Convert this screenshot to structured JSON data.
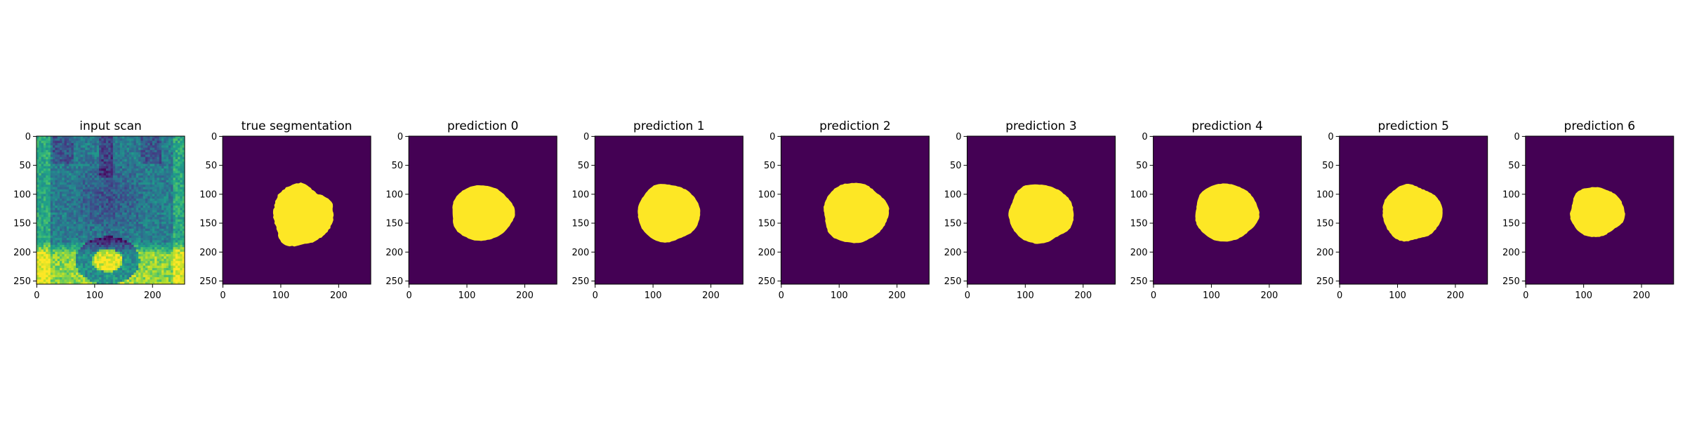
{
  "chart_data": {
    "type": "heatmap",
    "panels": [
      {
        "title": "input scan",
        "kind": "scan"
      },
      {
        "title": "true segmentation",
        "kind": "mask",
        "mask": {
          "cx": 137,
          "cy": 137,
          "rx": 52,
          "ry": 53,
          "jag": 0.12,
          "seed": 3
        }
      },
      {
        "title": "prediction 0",
        "kind": "mask",
        "mask": {
          "cx": 127,
          "cy": 133,
          "rx": 54,
          "ry": 48,
          "jag": 0.05,
          "seed": 11
        }
      },
      {
        "title": "prediction 1",
        "kind": "mask",
        "mask": {
          "cx": 127,
          "cy": 133,
          "rx": 54,
          "ry": 50,
          "jag": 0.05,
          "seed": 17
        }
      },
      {
        "title": "prediction 2",
        "kind": "mask",
        "mask": {
          "cx": 128,
          "cy": 133,
          "rx": 56,
          "ry": 52,
          "jag": 0.06,
          "seed": 23
        }
      },
      {
        "title": "prediction 3",
        "kind": "mask",
        "mask": {
          "cx": 127,
          "cy": 134,
          "rx": 56,
          "ry": 51,
          "jag": 0.06,
          "seed": 29
        }
      },
      {
        "title": "prediction 4",
        "kind": "mask",
        "mask": {
          "cx": 126,
          "cy": 132,
          "rx": 55,
          "ry": 50,
          "jag": 0.05,
          "seed": 31
        }
      },
      {
        "title": "prediction 5",
        "kind": "mask",
        "mask": {
          "cx": 125,
          "cy": 133,
          "rx": 52,
          "ry": 48,
          "jag": 0.07,
          "seed": 37
        }
      },
      {
        "title": "prediction 6",
        "kind": "mask",
        "mask": {
          "cx": 123,
          "cy": 131,
          "rx": 47,
          "ry": 43,
          "jag": 0.07,
          "seed": 41
        }
      }
    ],
    "image_size": 256,
    "xlim": [
      0,
      255
    ],
    "ylim": [
      255,
      0
    ],
    "xticks": [
      0,
      100,
      200
    ],
    "yticks": [
      0,
      50,
      100,
      150,
      200,
      250
    ],
    "colormap": "viridis",
    "background_color": "#440154",
    "foreground_color": "#fde725"
  }
}
